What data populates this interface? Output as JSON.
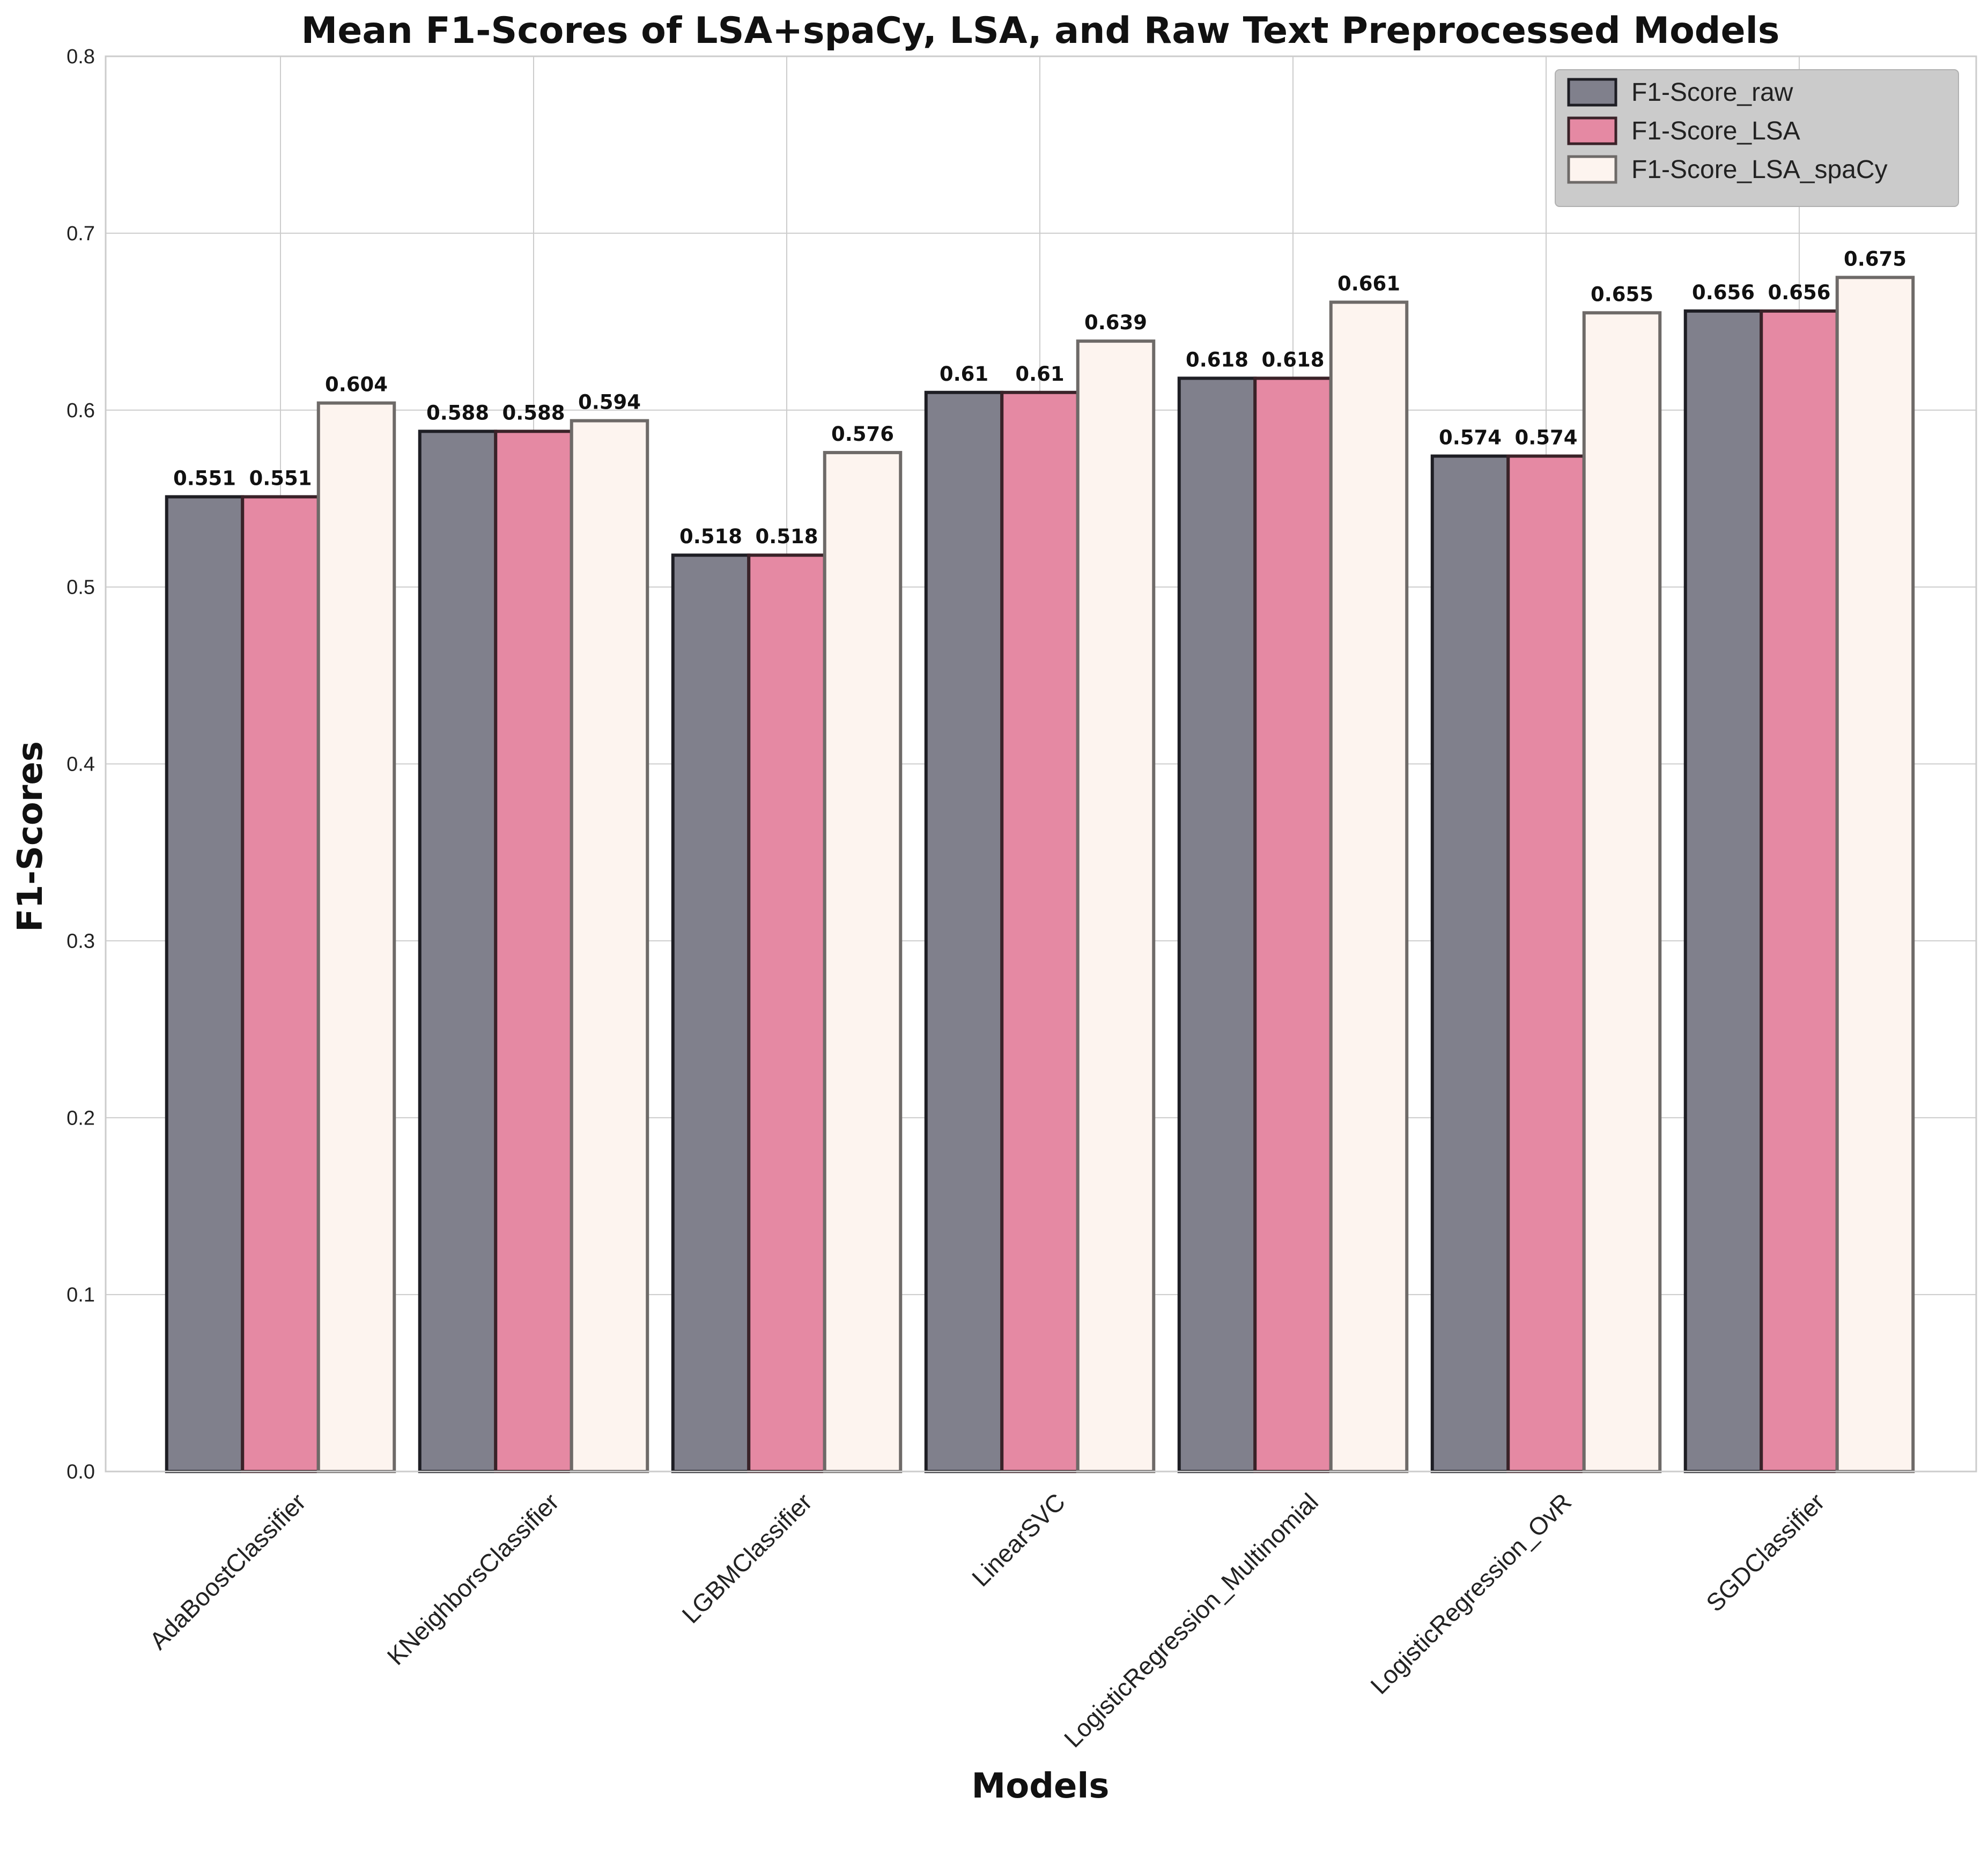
{
  "chart_data": {
    "type": "bar",
    "title": "Mean F1-Scores of LSA+spaCy, LSA, and Raw Text Preprocessed Models",
    "xlabel": "Models",
    "ylabel": "F1-Scores",
    "ylim": [
      0,
      0.8
    ],
    "yticks": [
      "0.0",
      "0.1",
      "0.2",
      "0.3",
      "0.4",
      "0.5",
      "0.6",
      "0.7",
      "0.8"
    ],
    "grid": true,
    "legend_position": "top-right",
    "categories": [
      "AdaBoostClassifier",
      "KNeighborsClassifier",
      "LGBMClassifier",
      "LinearSVC",
      "LogisticRegression_Multinomial",
      "LogisticRegression_OvR",
      "SGDClassifier"
    ],
    "series": [
      {
        "name": "F1-Score_raw",
        "color": "#80808c",
        "edge": "#1e1e24",
        "values": [
          0.551,
          0.588,
          0.518,
          0.61,
          0.618,
          0.574,
          0.656
        ],
        "labels": [
          "0.551",
          "0.588",
          "0.518",
          "0.61",
          "0.618",
          "0.574",
          "0.656"
        ]
      },
      {
        "name": "F1-Score_LSA",
        "color": "#e589a3",
        "edge": "#3a2228",
        "values": [
          0.551,
          0.588,
          0.518,
          0.61,
          0.618,
          0.574,
          0.656
        ],
        "labels": [
          "0.551",
          "0.588",
          "0.518",
          "0.61",
          "0.618",
          "0.574",
          "0.656"
        ]
      },
      {
        "name": "F1-Score_LSA_spaCy",
        "color": "#fdf4ef",
        "edge": "#6e6a68",
        "values": [
          0.604,
          0.594,
          0.576,
          0.639,
          0.661,
          0.655,
          0.675
        ],
        "labels": [
          "0.604",
          "0.594",
          "0.576",
          "0.639",
          "0.661",
          "0.655",
          "0.675"
        ]
      }
    ]
  }
}
